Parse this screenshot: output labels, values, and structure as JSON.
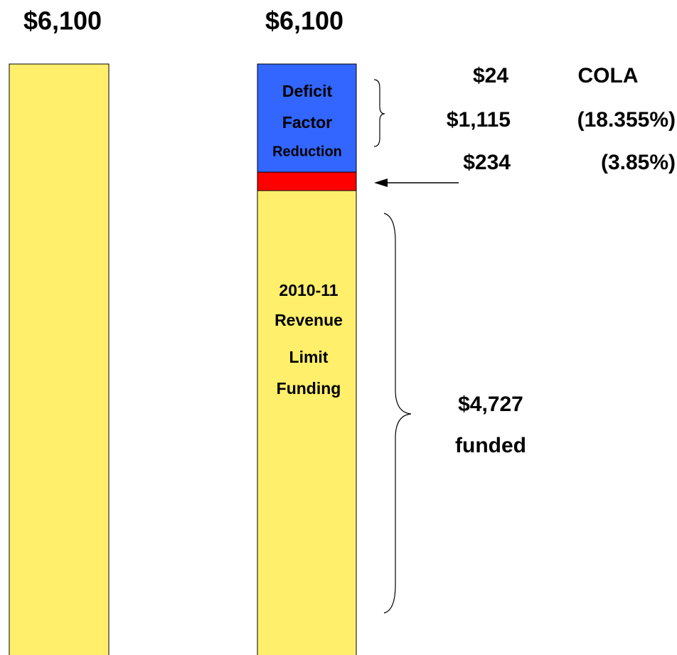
{
  "left_bar": {
    "total": "$6,100"
  },
  "right_bar": {
    "total": "$6,100",
    "deficit_label": [
      "Deficit",
      "Factor",
      "Reduction"
    ],
    "funding_label": [
      "2010-11",
      "Revenue",
      "Limit",
      "Funding"
    ]
  },
  "annotations": {
    "rows": [
      [
        "$24",
        "COLA"
      ],
      [
        "$1,115",
        "(18.355%)"
      ],
      [
        "$234",
        "(3.85%)"
      ]
    ],
    "funded": [
      "$4,727",
      "funded"
    ]
  }
}
